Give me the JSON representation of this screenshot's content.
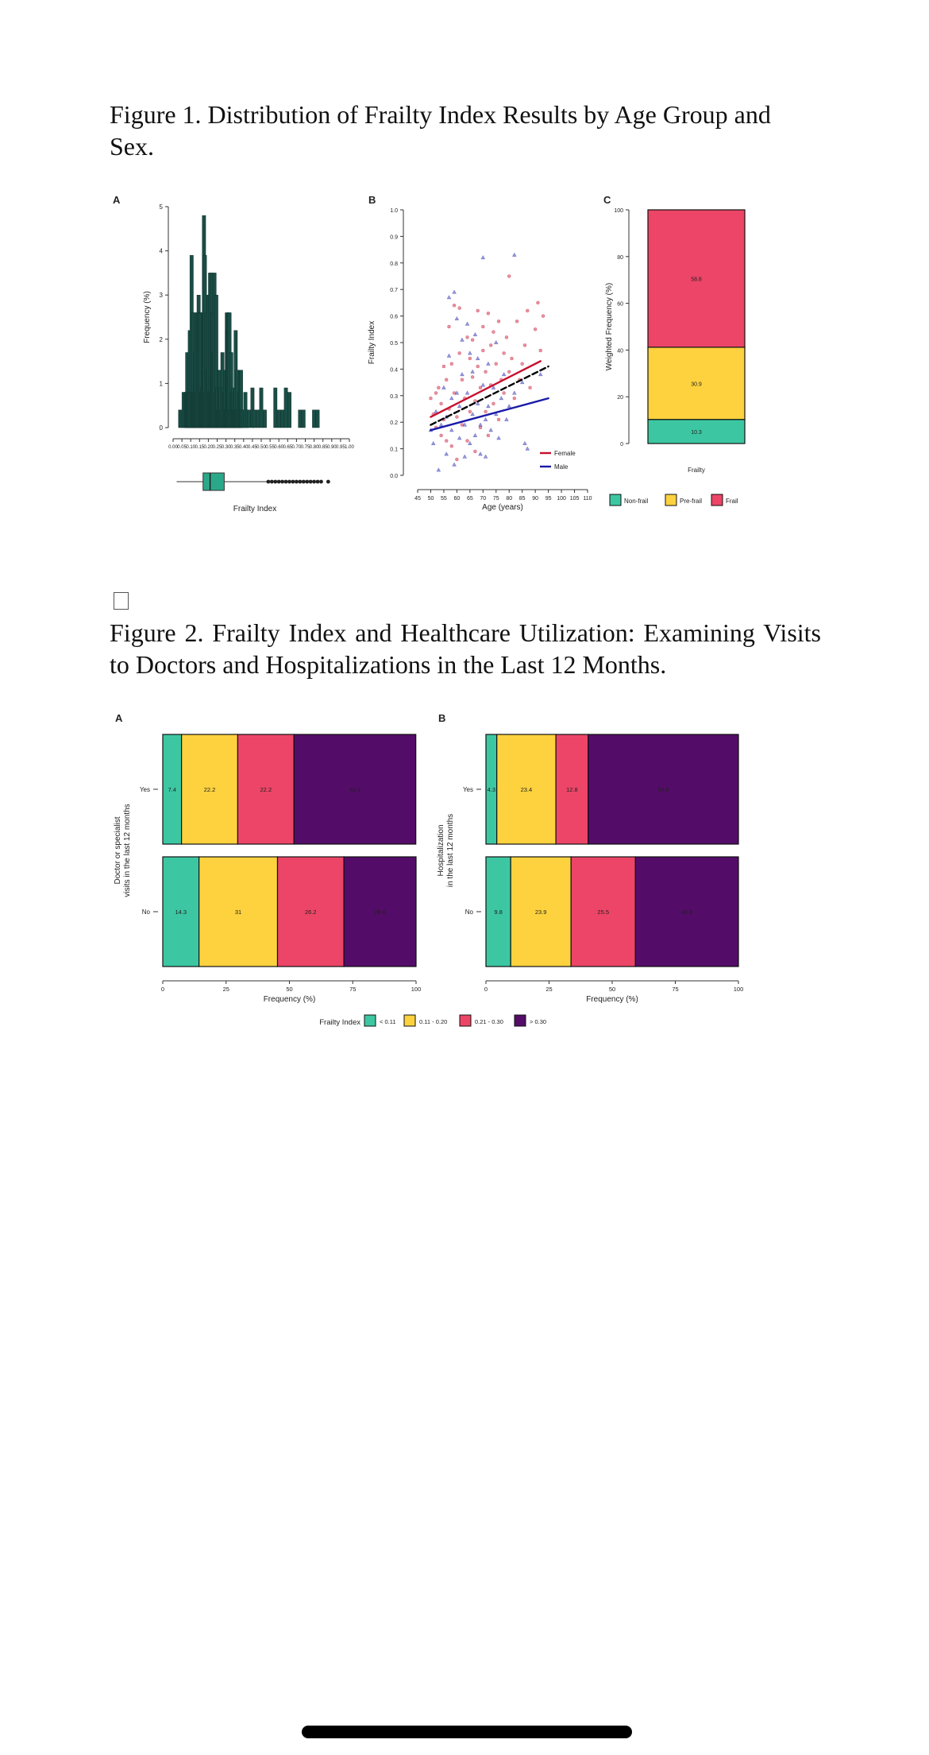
{
  "figure1": {
    "caption": "Figure 1. Distribution of Frailty Index Results by Age Group and Sex.",
    "panel_a": {
      "letter": "A",
      "ylabel": "Frequency (%)",
      "xlabel": "Frailty Index",
      "bar_color": "#1a4d45",
      "box_color": "#2aa88a"
    },
    "panel_b": {
      "letter": "B",
      "ylabel": "Frailty Index",
      "xlabel": "Age (years)",
      "legend": [
        "Female",
        "Male"
      ],
      "colors": {
        "Female": "#c8102e",
        "Male": "#1a1aa8",
        "Overall": "#000000"
      }
    },
    "panel_c": {
      "letter": "C",
      "ylabel": "Weighted Frequency (%)",
      "xlabel": "Frailty",
      "legend": [
        "Non-frail",
        "Pre-frail",
        "Frail"
      ]
    }
  },
  "checkbox_glyph": "☐",
  "figure2": {
    "caption": "Figure 2. Frailty Index and Healthcare Utilization: Examining Visits to Doctors and Hospitalizations in the Last 12 Months.",
    "legend_title": "Frailty Index",
    "legend": [
      "< 0.11",
      "0.11 - 0.20",
      "0.21 - 0.30",
      "> 0.30"
    ],
    "xlabel": "Frequency (%)",
    "panel_a": {
      "letter": "A",
      "ylabel": [
        "Doctor or specialist",
        "visits in the last 12 months"
      ]
    },
    "panel_b": {
      "letter": "B",
      "ylabel": [
        "Hospitalization",
        "in the last 12 months"
      ]
    }
  },
  "colors": {
    "c1": "#3cc7a2",
    "c2": "#fdd23e",
    "c3": "#ec4567",
    "c4": "#540c69"
  },
  "chart_data": [
    {
      "type": "bar",
      "panel": "1A",
      "xlabel": "Frailty Index",
      "ylabel": "Frequency (%)",
      "ylim": [
        0,
        5
      ],
      "yticks": [
        0,
        1,
        2,
        3,
        4,
        5
      ],
      "xlim": [
        0.0,
        1.0
      ],
      "xticks": [
        0.0,
        0.05,
        0.1,
        0.15,
        0.2,
        0.25,
        0.3,
        0.35,
        0.4,
        0.45,
        0.5,
        0.55,
        0.6,
        0.65,
        0.7,
        0.75,
        0.8,
        0.85,
        0.9,
        0.95,
        1.0
      ],
      "xtick_labels": [
        "0.00",
        "0.05",
        "0.10",
        "0.15",
        "0.20",
        "0.25",
        "0.30",
        "0.35",
        "0.40",
        "0.45",
        "0.50",
        "0.55",
        "0.60",
        "0.65",
        "0.70",
        "0.75",
        "0.80",
        "0.85",
        "0.90",
        "0.95",
        "1.00"
      ],
      "x": [
        0.04,
        0.05,
        0.06,
        0.07,
        0.075,
        0.08,
        0.085,
        0.09,
        0.095,
        0.1,
        0.105,
        0.11,
        0.115,
        0.12,
        0.125,
        0.13,
        0.135,
        0.14,
        0.145,
        0.15,
        0.155,
        0.16,
        0.165,
        0.17,
        0.175,
        0.18,
        0.185,
        0.19,
        0.195,
        0.2,
        0.205,
        0.21,
        0.215,
        0.22,
        0.225,
        0.23,
        0.235,
        0.24,
        0.245,
        0.25,
        0.255,
        0.26,
        0.265,
        0.27,
        0.275,
        0.28,
        0.285,
        0.29,
        0.295,
        0.3,
        0.305,
        0.31,
        0.315,
        0.32,
        0.325,
        0.33,
        0.335,
        0.34,
        0.345,
        0.35,
        0.355,
        0.36,
        0.365,
        0.37,
        0.375,
        0.38,
        0.385,
        0.39,
        0.4,
        0.41,
        0.42,
        0.43,
        0.45,
        0.46,
        0.48,
        0.5,
        0.52,
        0.58,
        0.6,
        0.62,
        0.64,
        0.66,
        0.72,
        0.74,
        0.8,
        0.82
      ],
      "values": [
        0.4,
        0.4,
        0.8,
        0.8,
        0.8,
        1.7,
        0.8,
        0.8,
        2.2,
        0.8,
        3.9,
        0.8,
        2.6,
        0.8,
        1.7,
        2.6,
        0.8,
        2.6,
        3.0,
        2.6,
        2.6,
        0.8,
        0.9,
        2.6,
        4.8,
        3.9,
        0.8,
        2.6,
        1.3,
        3.0,
        0.8,
        3.5,
        0.8,
        3.5,
        2.6,
        1.7,
        3.5,
        0.8,
        3.0,
        0.9,
        0.4,
        1.3,
        1.3,
        0.9,
        0.4,
        1.7,
        0.9,
        0.8,
        1.3,
        0.4,
        2.6,
        2.2,
        2.6,
        2.6,
        0.4,
        1.7,
        0.8,
        0.9,
        0.4,
        0.8,
        2.2,
        0.4,
        1.3,
        0.4,
        0.8,
        1.3,
        1.3,
        0.4,
        0.4,
        0.8,
        0.4,
        0.4,
        0.9,
        0.4,
        0.4,
        0.9,
        0.4,
        0.9,
        0.4,
        0.4,
        0.9,
        0.8,
        0.4,
        0.4,
        0.4,
        0.4
      ],
      "boxplot": {
        "min": 0.02,
        "q1": 0.17,
        "median": 0.21,
        "q3": 0.29,
        "whisker_high": 0.53,
        "outliers": [
          0.54,
          0.56,
          0.58,
          0.6,
          0.62,
          0.64,
          0.66,
          0.68,
          0.7,
          0.72,
          0.74,
          0.76,
          0.78,
          0.8,
          0.82,
          0.84,
          0.88
        ]
      }
    },
    {
      "type": "scatter",
      "panel": "1B",
      "xlabel": "Age (years)",
      "ylabel": "Frailty Index",
      "xlim": [
        45,
        110
      ],
      "ylim": [
        0.0,
        1.0
      ],
      "xticks": [
        45,
        50,
        55,
        60,
        65,
        70,
        75,
        80,
        85,
        90,
        95,
        100,
        105,
        110
      ],
      "yticks": [
        0.0,
        0.1,
        0.2,
        0.3,
        0.4,
        0.5,
        0.6,
        0.7,
        0.8,
        0.9,
        1.0
      ],
      "legend": [
        "Female",
        "Male"
      ],
      "legend_position": "bottom-right",
      "series": [
        {
          "name": "Female",
          "marker": "circle",
          "points": [
            [
              50,
              0.29
            ],
            [
              51,
              0.23
            ],
            [
              52,
              0.18
            ],
            [
              52,
              0.31
            ],
            [
              53,
              0.33
            ],
            [
              54,
              0.15
            ],
            [
              54,
              0.27
            ],
            [
              55,
              0.21
            ],
            [
              55,
              0.41
            ],
            [
              56,
              0.13
            ],
            [
              56,
              0.36
            ],
            [
              57,
              0.56
            ],
            [
              57,
              0.25
            ],
            [
              58,
              0.42
            ],
            [
              58,
              0.11
            ],
            [
              59,
              0.64
            ],
            [
              59,
              0.31
            ],
            [
              60,
              0.06
            ],
            [
              60,
              0.22
            ],
            [
              61,
              0.46
            ],
            [
              61,
              0.63
            ],
            [
              62,
              0.36
            ],
            [
              62,
              0.19
            ],
            [
              63,
              0.29
            ],
            [
              64,
              0.52
            ],
            [
              64,
              0.13
            ],
            [
              65,
              0.44
            ],
            [
              65,
              0.24
            ],
            [
              66,
              0.37
            ],
            [
              66,
              0.51
            ],
            [
              67,
              0.09
            ],
            [
              67,
              0.28
            ],
            [
              68,
              0.62
            ],
            [
              68,
              0.41
            ],
            [
              69,
              0.18
            ],
            [
              69,
              0.33
            ],
            [
              70,
              0.47
            ],
            [
              70,
              0.56
            ],
            [
              71,
              0.24
            ],
            [
              71,
              0.39
            ],
            [
              72,
              0.15
            ],
            [
              72,
              0.61
            ],
            [
              73,
              0.34
            ],
            [
              73,
              0.49
            ],
            [
              74,
              0.27
            ],
            [
              74,
              0.54
            ],
            [
              75,
              0.42
            ],
            [
              76,
              0.21
            ],
            [
              76,
              0.58
            ],
            [
              77,
              0.36
            ],
            [
              78,
              0.46
            ],
            [
              78,
              0.31
            ],
            [
              79,
              0.52
            ],
            [
              80,
              0.39
            ],
            [
              80,
              0.75
            ],
            [
              81,
              0.44
            ],
            [
              82,
              0.29
            ],
            [
              83,
              0.58
            ],
            [
              84,
              0.36
            ],
            [
              85,
              0.42
            ],
            [
              86,
              0.49
            ],
            [
              87,
              0.62
            ],
            [
              88,
              0.33
            ],
            [
              90,
              0.55
            ],
            [
              91,
              0.65
            ],
            [
              92,
              0.47
            ],
            [
              93,
              0.6
            ]
          ]
        },
        {
          "name": "Male",
          "marker": "triangle",
          "points": [
            [
              50,
              0.17
            ],
            [
              51,
              0.12
            ],
            [
              52,
              0.24
            ],
            [
              53,
              0.02
            ],
            [
              54,
              0.19
            ],
            [
              55,
              0.33
            ],
            [
              56,
              0.08
            ],
            [
              56,
              0.22
            ],
            [
              57,
              0.67
            ],
            [
              57,
              0.45
            ],
            [
              58,
              0.17
            ],
            [
              58,
              0.29
            ],
            [
              59,
              0.69
            ],
            [
              59,
              0.04
            ],
            [
              60,
              0.31
            ],
            [
              60,
              0.59
            ],
            [
              61,
              0.14
            ],
            [
              61,
              0.26
            ],
            [
              62,
              0.51
            ],
            [
              62,
              0.38
            ],
            [
              63,
              0.19
            ],
            [
              63,
              0.07
            ],
            [
              64,
              0.57
            ],
            [
              64,
              0.31
            ],
            [
              65,
              0.12
            ],
            [
              65,
              0.46
            ],
            [
              66,
              0.23
            ],
            [
              66,
              0.39
            ],
            [
              67,
              0.15
            ],
            [
              67,
              0.53
            ],
            [
              68,
              0.27
            ],
            [
              68,
              0.44
            ],
            [
              69,
              0.19
            ],
            [
              69,
              0.08
            ],
            [
              70,
              0.34
            ],
            [
              70,
              0.82
            ],
            [
              71,
              0.21
            ],
            [
              71,
              0.07
            ],
            [
              72,
              0.42
            ],
            [
              72,
              0.26
            ],
            [
              73,
              0.17
            ],
            [
              74,
              0.33
            ],
            [
              75,
              0.5
            ],
            [
              75,
              0.23
            ],
            [
              76,
              0.14
            ],
            [
              77,
              0.29
            ],
            [
              78,
              0.38
            ],
            [
              79,
              0.21
            ],
            [
              80,
              0.26
            ],
            [
              82,
              0.83
            ],
            [
              82,
              0.31
            ],
            [
              85,
              0.35
            ],
            [
              86,
              0.12
            ],
            [
              87,
              0.1
            ],
            [
              92,
              0.38
            ]
          ]
        }
      ],
      "fit_lines": [
        {
          "name": "Female",
          "from": [
            50,
            0.22
          ],
          "to": [
            92,
            0.43
          ]
        },
        {
          "name": "Male",
          "from": [
            50,
            0.17
          ],
          "to": [
            95,
            0.29
          ]
        },
        {
          "name": "Overall",
          "from": [
            50,
            0.19
          ],
          "to": [
            95,
            0.41
          ],
          "style": "dashed"
        }
      ]
    },
    {
      "type": "bar",
      "panel": "1C",
      "stacked": true,
      "categories": [
        "Frailty"
      ],
      "xlabel": "Frailty",
      "ylabel": "Weighted Frequency (%)",
      "ylim": [
        0,
        100
      ],
      "yticks": [
        0,
        20,
        40,
        60,
        80,
        100
      ],
      "series": [
        {
          "name": "Non-frail",
          "values": [
            10.3
          ]
        },
        {
          "name": "Pre-frail",
          "values": [
            30.9
          ]
        },
        {
          "name": "Frail",
          "values": [
            58.8
          ]
        }
      ],
      "legend_position": "bottom"
    },
    {
      "type": "bar",
      "panel": "2A",
      "orientation": "horizontal",
      "stacked": true,
      "ylabel": "Doctor or specialist visits in the last 12 months",
      "xlabel": "Frequency (%)",
      "xlim": [
        0,
        100
      ],
      "xticks": [
        0,
        25,
        50,
        75,
        100
      ],
      "categories": [
        "Yes",
        "No"
      ],
      "series": [
        {
          "name": "< 0.11",
          "values": [
            7.4,
            14.3
          ]
        },
        {
          "name": "0.11 - 0.20",
          "values": [
            22.2,
            31
          ]
        },
        {
          "name": "0.21 - 0.30",
          "values": [
            22.2,
            26.2
          ]
        },
        {
          "name": "> 0.30",
          "values": [
            48.1,
            28.6
          ]
        }
      ],
      "value_labels": [
        [
          "7.4",
          "22.2",
          "22.2",
          "48.1"
        ],
        [
          "14.3",
          "31",
          "26.2",
          "28.6"
        ]
      ],
      "legend_position": "bottom"
    },
    {
      "type": "bar",
      "panel": "2B",
      "orientation": "horizontal",
      "stacked": true,
      "ylabel": "Hospitalization in the last 12 months",
      "xlabel": "Frequency (%)",
      "xlim": [
        0,
        100
      ],
      "xticks": [
        0,
        25,
        50,
        75,
        100
      ],
      "categories": [
        "Yes",
        "No"
      ],
      "series": [
        {
          "name": "< 0.11",
          "values": [
            4.3,
            9.8
          ]
        },
        {
          "name": "0.11 - 0.20",
          "values": [
            23.4,
            23.9
          ]
        },
        {
          "name": "0.21 - 0.30",
          "values": [
            12.8,
            25.5
          ]
        },
        {
          "name": "> 0.30",
          "values": [
            59.6,
            40.8
          ]
        }
      ],
      "value_labels": [
        [
          "4.3",
          "23.4",
          "12.8",
          "59.6"
        ],
        [
          "9.8",
          "23.9",
          "25.5",
          "40.8"
        ]
      ],
      "legend_position": "bottom"
    }
  ]
}
